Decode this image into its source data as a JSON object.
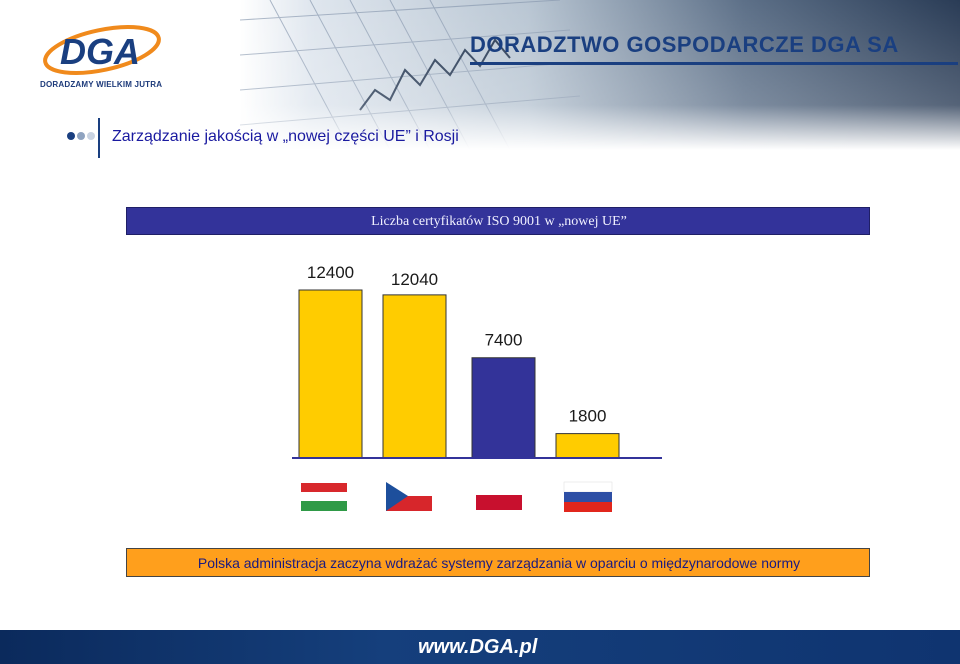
{
  "header": {
    "logo_text": "DGA",
    "logo_tagline": "DORADZAMY WIELKIM JUTRA",
    "company_name": "DORADZTWO GOSPODARCZE DGA SA",
    "slide_title": "Zarządzanie jakością w „nowej części UE” i Rosji"
  },
  "chart_data": {
    "type": "bar",
    "title": "Liczba certyfikatów ISO 9001 w „nowej UE”",
    "categories": [
      "Węgry",
      "Czechy",
      "Polska",
      "Rosja"
    ],
    "values": [
      12400,
      12040,
      7400,
      1800
    ],
    "data_labels": [
      "12400",
      "12040",
      "7400",
      "1800"
    ],
    "colors": [
      "#ffcc00",
      "#ffcc00",
      "#333399",
      "#ffcc00"
    ],
    "ylim": [
      0,
      12400
    ],
    "grid": false,
    "xlabel": "",
    "ylabel": ""
  },
  "footer": {
    "statement": "Polska administracja zaczyna wdrażać systemy zarządzania w oparciu o międzynarodowe normy",
    "url": "www.DGA.pl"
  },
  "colors": {
    "navy": "#1a3f80",
    "title_bar": "#33339a",
    "orange": "#ff9f1c",
    "bar_yellow": "#ffcc00",
    "bar_blue": "#333399"
  }
}
